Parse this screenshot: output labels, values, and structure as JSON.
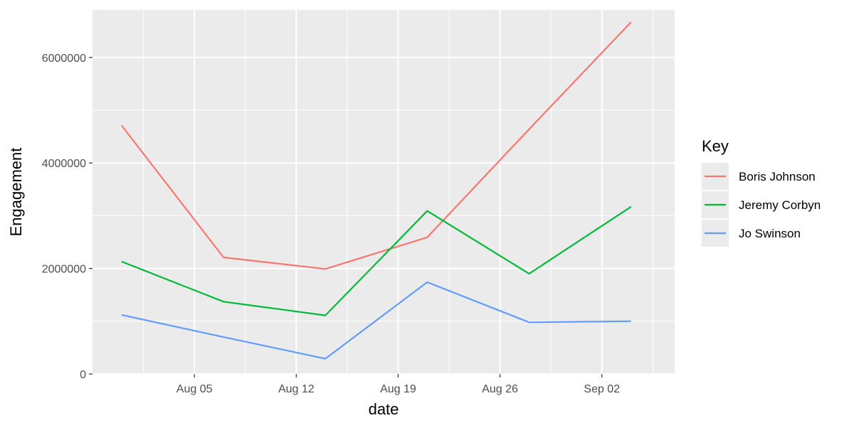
{
  "chart_data": {
    "type": "line",
    "xlabel": "date",
    "ylabel": "Engagement",
    "x_dates": [
      "2019-07-31",
      "2019-08-07",
      "2019-08-14",
      "2019-08-21",
      "2019-08-28",
      "2019-09-04"
    ],
    "xlim": [
      "2019-07-29",
      "2019-09-07"
    ],
    "ylim": [
      0,
      6900000
    ],
    "x_ticks": [
      {
        "date": "2019-08-05",
        "label": "Aug 05"
      },
      {
        "date": "2019-08-12",
        "label": "Aug 12"
      },
      {
        "date": "2019-08-19",
        "label": "Aug 19"
      },
      {
        "date": "2019-08-26",
        "label": "Aug 26"
      },
      {
        "date": "2019-09-02",
        "label": "Sep 02"
      }
    ],
    "y_ticks": [
      {
        "value": 0,
        "label": "0"
      },
      {
        "value": 2000000,
        "label": "2000000"
      },
      {
        "value": 4000000,
        "label": "4000000"
      },
      {
        "value": 6000000,
        "label": "6000000"
      }
    ],
    "series": [
      {
        "name": "Boris Johnson",
        "color": "#F8766D",
        "values": [
          4710000,
          2210000,
          1990000,
          2590000,
          4640000,
          6670000
        ]
      },
      {
        "name": "Jeremy Corbyn",
        "color": "#00BA38",
        "values": [
          2130000,
          1370000,
          1110000,
          3090000,
          1900000,
          3170000
        ]
      },
      {
        "name": "Jo Swinson",
        "color": "#619CFF",
        "values": [
          1120000,
          700000,
          290000,
          1740000,
          980000,
          1000000
        ]
      }
    ],
    "legend": {
      "title": "Key",
      "position": "right"
    },
    "grid": true,
    "panel_background": "#EBEBEB"
  }
}
